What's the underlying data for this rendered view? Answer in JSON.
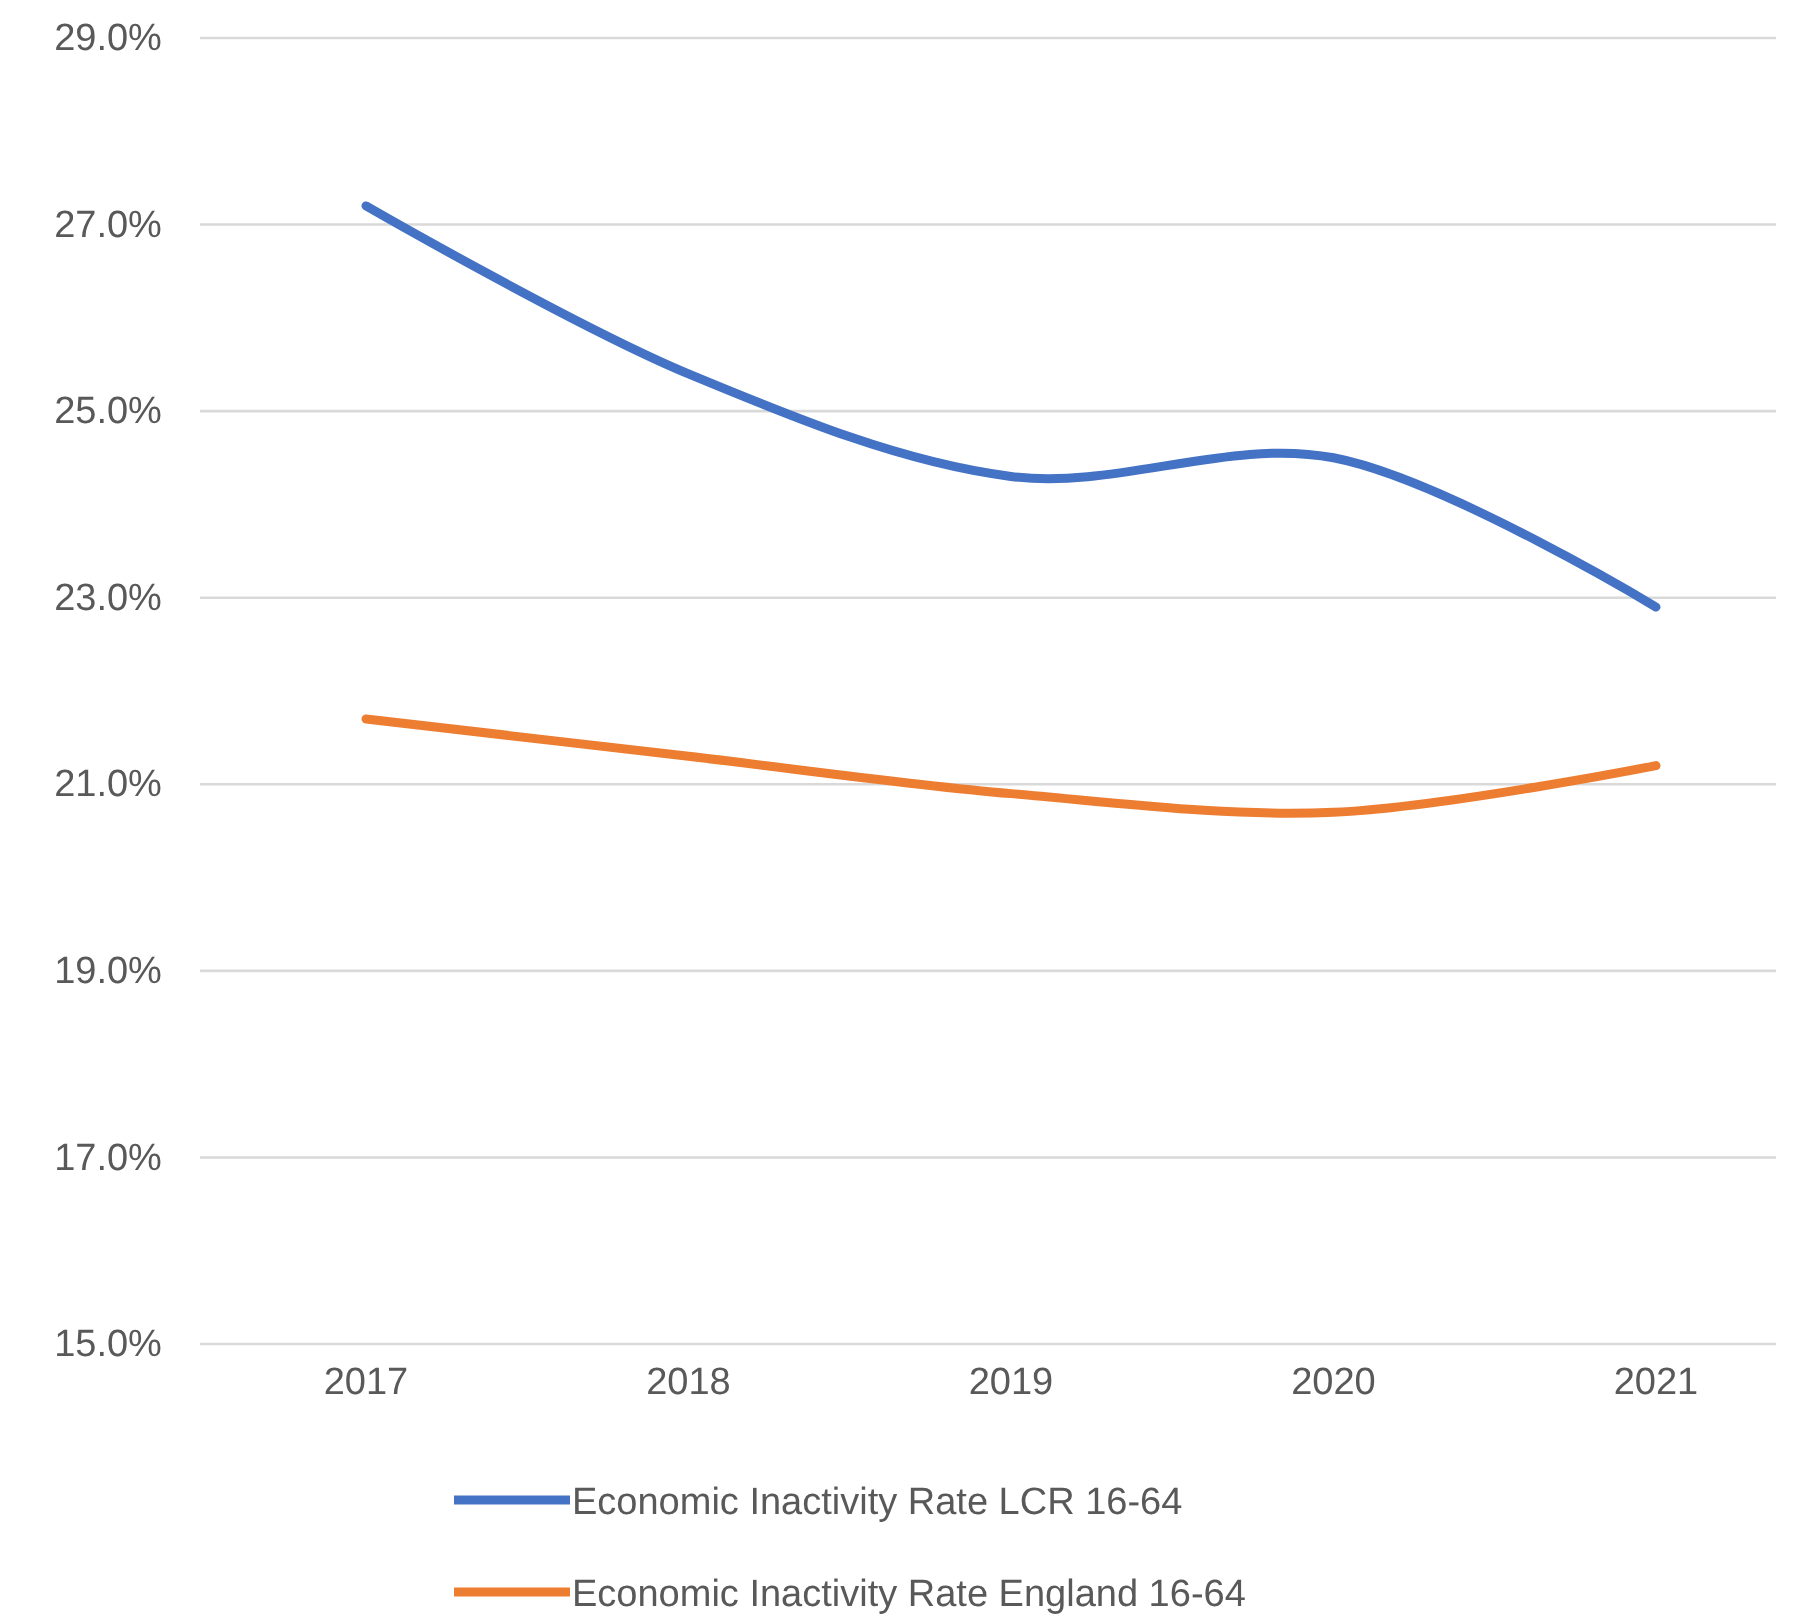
{
  "chart_data": {
    "type": "line",
    "categories": [
      "2017",
      "2018",
      "2019",
      "2020",
      "2021"
    ],
    "series": [
      {
        "name": "Economic Inactivity Rate LCR 16-64",
        "color": "#4472c4",
        "values": [
          27.2,
          25.4,
          24.3,
          24.5,
          22.9
        ]
      },
      {
        "name": "Economic Inactivity Rate England 16-64",
        "color": "#ed7d31",
        "values": [
          21.7,
          21.3,
          20.9,
          20.7,
          21.2
        ]
      }
    ],
    "ylim": [
      15,
      29
    ],
    "yticks": [
      {
        "value": 15,
        "label": "15.0%"
      },
      {
        "value": 17,
        "label": "17.0%"
      },
      {
        "value": 19,
        "label": "19.0%"
      },
      {
        "value": 21,
        "label": "21.0%"
      },
      {
        "value": 23,
        "label": "23.0%"
      },
      {
        "value": 25,
        "label": "25.0%"
      },
      {
        "value": 27,
        "label": "27.0%"
      },
      {
        "value": 29,
        "label": "29.0%"
      }
    ],
    "grid": "y",
    "legend": "bottom"
  }
}
